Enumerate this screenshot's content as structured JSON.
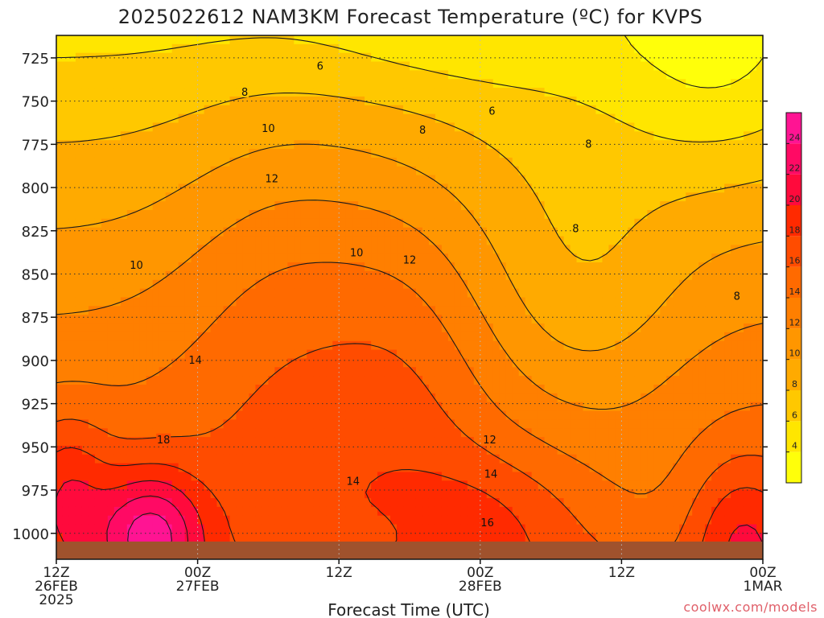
{
  "chart_data": {
    "type": "heatmap",
    "title": "2025022612 NAM3KM Forecast Temperature (ºC) for KVPS",
    "xlabel": "Forecast Time (UTC)",
    "ylabel": "",
    "credit": "coolwx.com/models",
    "y_axis": {
      "ticks": [
        725,
        750,
        775,
        800,
        825,
        850,
        875,
        900,
        925,
        950,
        975,
        1000
      ],
      "range": [
        1015,
        712
      ],
      "inverted": true
    },
    "x_axis": {
      "ticks": [
        {
          "label": [
            "12Z",
            "26FEB",
            "2025"
          ],
          "hour": 0
        },
        {
          "label": [
            "00Z",
            "27FEB"
          ],
          "hour": 12
        },
        {
          "label": [
            "12Z"
          ],
          "hour": 24
        },
        {
          "label": [
            "00Z",
            "28FEB"
          ],
          "hour": 36
        },
        {
          "label": [
            "12Z"
          ],
          "hour": 48
        },
        {
          "label": [
            "00Z",
            "1MAR"
          ],
          "hour": 60
        }
      ],
      "range": [
        0,
        60
      ]
    },
    "grid": true,
    "colorbar": {
      "ticks": [
        4,
        6,
        8,
        10,
        12,
        14,
        16,
        18,
        20,
        22,
        24
      ],
      "bins": [
        {
          "from": 2,
          "to": 4,
          "color": "#ffff0a"
        },
        {
          "from": 4,
          "to": 6,
          "color": "#ffe600"
        },
        {
          "from": 6,
          "to": 8,
          "color": "#ffc800"
        },
        {
          "from": 8,
          "to": 10,
          "color": "#ffaa00"
        },
        {
          "from": 10,
          "to": 12,
          "color": "#ff9600"
        },
        {
          "from": 12,
          "to": 14,
          "color": "#ff7f00"
        },
        {
          "from": 14,
          "to": 16,
          "color": "#ff6a00"
        },
        {
          "from": 16,
          "to": 18,
          "color": "#ff4c00"
        },
        {
          "from": 18,
          "to": 20,
          "color": "#ff2a00"
        },
        {
          "from": 20,
          "to": 22,
          "color": "#ff0a3c"
        },
        {
          "from": 22,
          "to": 24,
          "color": "#ff0a64"
        },
        {
          "from": 24,
          "to": 26,
          "color": "#ff1493"
        }
      ]
    },
    "contour_labels": [
      {
        "text": "6",
        "hour": 22.4,
        "p": 730
      },
      {
        "text": "6",
        "hour": 37.0,
        "p": 756
      },
      {
        "text": "8",
        "hour": 16.0,
        "p": 745
      },
      {
        "text": "8",
        "hour": 31.1,
        "p": 767
      },
      {
        "text": "8",
        "hour": 45.2,
        "p": 775
      },
      {
        "text": "8",
        "hour": 44.1,
        "p": 824
      },
      {
        "text": "8",
        "hour": 57.8,
        "p": 863
      },
      {
        "text": "10",
        "hour": 18.0,
        "p": 766
      },
      {
        "text": "10",
        "hour": 6.8,
        "p": 845
      },
      {
        "text": "10",
        "hour": 25.5,
        "p": 838
      },
      {
        "text": "12",
        "hour": 18.3,
        "p": 795
      },
      {
        "text": "12",
        "hour": 30.0,
        "p": 842
      },
      {
        "text": "12",
        "hour": 36.8,
        "p": 946
      },
      {
        "text": "14",
        "hour": 11.8,
        "p": 900
      },
      {
        "text": "14",
        "hour": 25.2,
        "p": 970
      },
      {
        "text": "14",
        "hour": 36.9,
        "p": 966
      },
      {
        "text": "16",
        "hour": 36.6,
        "p": 994
      },
      {
        "text": "18",
        "hour": 9.1,
        "p": 946
      }
    ]
  }
}
